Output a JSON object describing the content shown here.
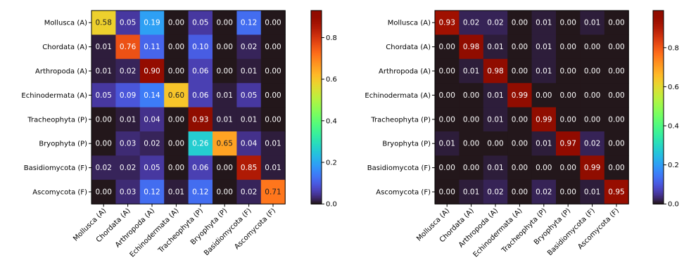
{
  "chart_data": [
    {
      "type": "heatmap",
      "title": "",
      "xlabel": "",
      "ylabel": "",
      "categories": [
        "Mollusca (A)",
        "Chordata (A)",
        "Arthropoda (A)",
        "Echinodermata (A)",
        "Tracheophyta (P)",
        "Bryophyta (P)",
        "Basidiomycota (F)",
        "Ascomycota (F)"
      ],
      "colorbar": {
        "min": 0.0,
        "max": 0.93,
        "ticks": [
          "0.0",
          "0.2",
          "0.4",
          "0.6",
          "0.8"
        ],
        "colormap": "turbo"
      },
      "values": [
        [
          0.58,
          0.05,
          0.19,
          0.0,
          0.05,
          0.0,
          0.12,
          0.0
        ],
        [
          0.01,
          0.76,
          0.11,
          0.0,
          0.1,
          0.0,
          0.02,
          0.0
        ],
        [
          0.01,
          0.02,
          0.9,
          0.0,
          0.06,
          0.0,
          0.01,
          0.0
        ],
        [
          0.05,
          0.09,
          0.14,
          0.6,
          0.06,
          0.01,
          0.05,
          0.0
        ],
        [
          0.0,
          0.01,
          0.04,
          0.0,
          0.93,
          0.01,
          0.01,
          0.0
        ],
        [
          0.0,
          0.03,
          0.02,
          0.0,
          0.26,
          0.65,
          0.04,
          0.01
        ],
        [
          0.02,
          0.02,
          0.05,
          0.0,
          0.06,
          0.0,
          0.85,
          0.01
        ],
        [
          0.0,
          0.03,
          0.12,
          0.01,
          0.12,
          0.0,
          0.02,
          0.71
        ]
      ]
    },
    {
      "type": "heatmap",
      "title": "",
      "xlabel": "",
      "ylabel": "",
      "categories": [
        "Mollusca (A)",
        "Chordata (A)",
        "Arthropoda (A)",
        "Echinodermata (A)",
        "Tracheophyta (P)",
        "Bryophyta (P)",
        "Basidiomycota (F)",
        "Ascomycota (F)"
      ],
      "colorbar": {
        "min": 0.0,
        "max": 0.99,
        "ticks": [
          "0.0",
          "0.2",
          "0.4",
          "0.6",
          "0.8"
        ],
        "colormap": "turbo"
      },
      "values": [
        [
          0.93,
          0.02,
          0.02,
          0.0,
          0.01,
          0.0,
          0.01,
          0.0
        ],
        [
          0.0,
          0.98,
          0.01,
          0.0,
          0.01,
          0.0,
          0.0,
          0.0
        ],
        [
          0.0,
          0.01,
          0.98,
          0.0,
          0.01,
          0.0,
          0.0,
          0.0
        ],
        [
          0.0,
          0.0,
          0.01,
          0.99,
          0.0,
          0.0,
          0.0,
          0.0
        ],
        [
          0.0,
          0.0,
          0.01,
          0.0,
          0.99,
          0.0,
          0.0,
          0.0
        ],
        [
          0.01,
          0.0,
          0.0,
          0.0,
          0.01,
          0.97,
          0.02,
          0.0
        ],
        [
          0.0,
          0.0,
          0.01,
          0.0,
          0.0,
          0.0,
          0.99,
          0.0
        ],
        [
          0.0,
          0.01,
          0.02,
          0.0,
          0.02,
          0.0,
          0.01,
          0.95
        ]
      ]
    }
  ]
}
